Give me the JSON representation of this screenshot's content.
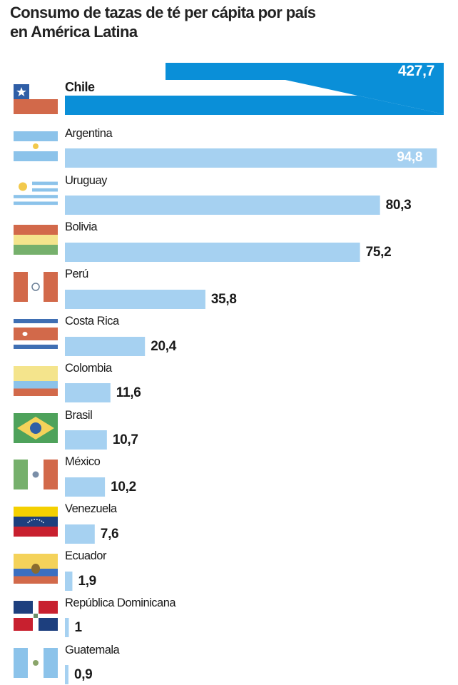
{
  "title_line1": "Consumo de tazas de té per cápita por país",
  "title_line2": "en América Latina",
  "colors": {
    "highlight": "#0a8fd8",
    "bar": "#a6d1f1",
    "text": "#1a1a1a"
  },
  "chart_data": {
    "type": "bar",
    "orientation": "horizontal",
    "title": "Consumo de tazas de té per cápita por país en América Latina",
    "xlabel": "",
    "ylabel": "",
    "axis_break_on": "Chile",
    "highlighted": "Chile",
    "categories": [
      "Chile",
      "Argentina",
      "Uruguay",
      "Bolivia",
      "Perú",
      "Costa Rica",
      "Colombia",
      "Brasil",
      "México",
      "Venezuela",
      "Ecuador",
      "República Dominicana",
      "Guatemala"
    ],
    "values": [
      427.7,
      94.8,
      80.3,
      75.2,
      35.8,
      20.4,
      11.6,
      10.7,
      10.2,
      7.6,
      1.9,
      1,
      0.9
    ],
    "value_labels": [
      "427,7",
      "94,8",
      "80,3",
      "75,2",
      "35,8",
      "20,4",
      "11,6",
      "10,7",
      "10,2",
      "7,6",
      "1,9",
      "1",
      "0,9"
    ],
    "flags": [
      "chile-flag",
      "argentina-flag",
      "uruguay-flag",
      "bolivia-flag",
      "peru-flag",
      "costa-rica-flag",
      "colombia-flag",
      "brazil-flag",
      "mexico-flag",
      "venezuela-flag",
      "ecuador-flag",
      "dominican-republic-flag",
      "guatemala-flag"
    ]
  }
}
